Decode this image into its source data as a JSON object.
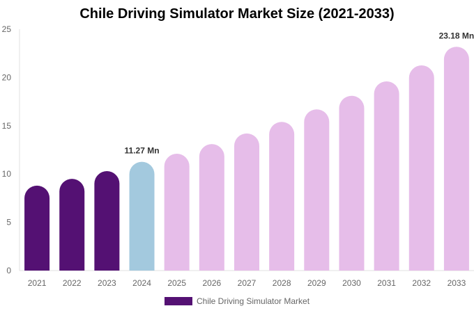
{
  "chart_data": {
    "type": "bar",
    "title": "Chile Driving Simulator Market Size (2021-2033)",
    "categories": [
      "2021",
      "2022",
      "2023",
      "2024",
      "2025",
      "2026",
      "2027",
      "2028",
      "2029",
      "2030",
      "2031",
      "2032",
      "2033"
    ],
    "series": [
      {
        "name": "Chile Driving Simulator Market",
        "values": [
          8.8,
          9.5,
          10.3,
          11.27,
          12.1,
          13.1,
          14.2,
          15.4,
          16.7,
          18.1,
          19.6,
          21.25,
          23.18
        ]
      }
    ],
    "data_labels": {
      "2024": "11.27 Mn",
      "2033": "23.18 Mn"
    },
    "ylim": [
      0,
      25
    ],
    "yticks": [
      "0",
      "5",
      "10",
      "15",
      "20",
      "25"
    ],
    "grid": false,
    "legend_position": "bottom",
    "colors": {
      "historical": "#541173",
      "base_year": "#a3c9de",
      "forecast": "#e6bde9"
    }
  }
}
